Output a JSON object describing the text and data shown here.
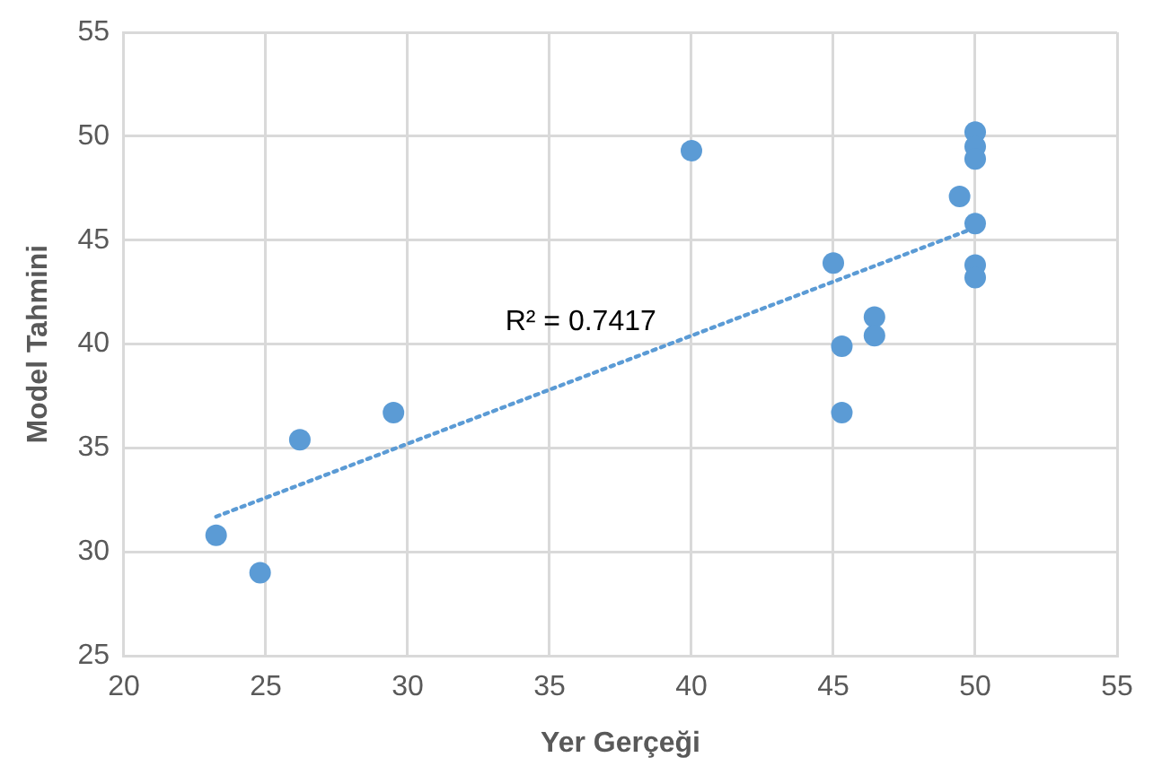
{
  "chart_data": {
    "type": "scatter",
    "xlabel": "Yer Gerçeği",
    "ylabel": "Model Tahmini",
    "xlim": [
      20,
      55
    ],
    "xticks": [
      20,
      25,
      30,
      35,
      40,
      45,
      50,
      55
    ],
    "ylim": [
      25,
      55
    ],
    "yticks": [
      25,
      30,
      35,
      40,
      45,
      50,
      55
    ],
    "grid": true,
    "legend": false,
    "marker": "circle",
    "series": [
      {
        "color": "#5b9bd5",
        "x": [
          23.25,
          24.8,
          26.2,
          29.5,
          40,
          45,
          45.3,
          45.3,
          46.45,
          46.45,
          50,
          50,
          50,
          49.45,
          50,
          50,
          50
        ],
        "values": [
          30.8,
          29.0,
          35.4,
          36.7,
          49.3,
          43.9,
          39.9,
          36.7,
          41.3,
          40.4,
          50.2,
          49.5,
          48.9,
          47.1,
          45.8,
          43.8,
          43.2
        ]
      },
      {
        "type": "line",
        "color": "#5b9bd5",
        "line_style": "dotted",
        "marker": "none",
        "x": [
          23.25,
          50
        ],
        "values": [
          31.7,
          45.6
        ]
      }
    ],
    "annotations": [
      "R² = 0.7417"
    ]
  }
}
